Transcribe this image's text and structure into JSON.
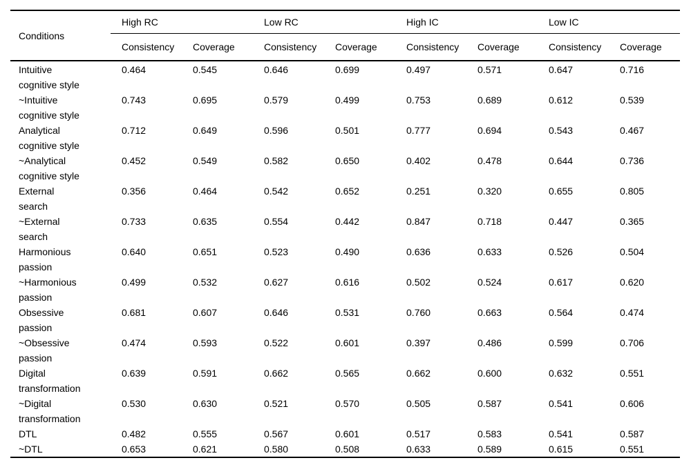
{
  "table": {
    "corner_header": "Conditions",
    "groups": [
      {
        "label": "High RC"
      },
      {
        "label": "Low RC"
      },
      {
        "label": "High IC"
      },
      {
        "label": "Low IC"
      }
    ],
    "subheaders": [
      "Consistency",
      "Coverage",
      "Consistency",
      "Coverage",
      "Consistency",
      "Coverage",
      "Consistency",
      "Coverage"
    ],
    "rows": [
      {
        "condition": "Intuitive\ncognitive style",
        "values": [
          "0.464",
          "0.545",
          "0.646",
          "0.699",
          "0.497",
          "0.571",
          "0.647",
          "0.716"
        ]
      },
      {
        "condition": "~Intuitive\ncognitive style",
        "values": [
          "0.743",
          "0.695",
          "0.579",
          "0.499",
          "0.753",
          "0.689",
          "0.612",
          "0.539"
        ]
      },
      {
        "condition": "Analytical\ncognitive style",
        "values": [
          "0.712",
          "0.649",
          "0.596",
          "0.501",
          "0.777",
          "0.694",
          "0.543",
          "0.467"
        ]
      },
      {
        "condition": "~Analytical\ncognitive style",
        "values": [
          "0.452",
          "0.549",
          "0.582",
          "0.650",
          "0.402",
          "0.478",
          "0.644",
          "0.736"
        ]
      },
      {
        "condition": "External\nsearch",
        "values": [
          "0.356",
          "0.464",
          "0.542",
          "0.652",
          "0.251",
          "0.320",
          "0.655",
          "0.805"
        ]
      },
      {
        "condition": "~External\nsearch",
        "values": [
          "0.733",
          "0.635",
          "0.554",
          "0.442",
          "0.847",
          "0.718",
          "0.447",
          "0.365"
        ]
      },
      {
        "condition": "Harmonious\npassion",
        "values": [
          "0.640",
          "0.651",
          "0.523",
          "0.490",
          "0.636",
          "0.633",
          "0.526",
          "0.504"
        ]
      },
      {
        "condition": "~Harmonious\npassion",
        "values": [
          "0.499",
          "0.532",
          "0.627",
          "0.616",
          "0.502",
          "0.524",
          "0.617",
          "0.620"
        ]
      },
      {
        "condition": "Obsessive\npassion",
        "values": [
          "0.681",
          "0.607",
          "0.646",
          "0.531",
          "0.760",
          "0.663",
          "0.564",
          "0.474"
        ]
      },
      {
        "condition": "~Obsessive\npassion",
        "values": [
          "0.474",
          "0.593",
          "0.522",
          "0.601",
          "0.397",
          "0.486",
          "0.599",
          "0.706"
        ]
      },
      {
        "condition": "Digital\ntransformation",
        "values": [
          "0.639",
          "0.591",
          "0.662",
          "0.565",
          "0.662",
          "0.600",
          "0.632",
          "0.551"
        ]
      },
      {
        "condition": "~Digital\ntransformation",
        "values": [
          "0.530",
          "0.630",
          "0.521",
          "0.570",
          "0.505",
          "0.587",
          "0.541",
          "0.606"
        ]
      },
      {
        "condition": "DTL",
        "values": [
          "0.482",
          "0.555",
          "0.567",
          "0.601",
          "0.517",
          "0.583",
          "0.541",
          "0.587"
        ]
      },
      {
        "condition": "~DTL",
        "values": [
          "0.653",
          "0.621",
          "0.580",
          "0.508",
          "0.633",
          "0.589",
          "0.615",
          "0.551"
        ]
      }
    ]
  },
  "colors": {
    "text": "#000000",
    "rule": "#000000",
    "background": "#ffffff"
  }
}
